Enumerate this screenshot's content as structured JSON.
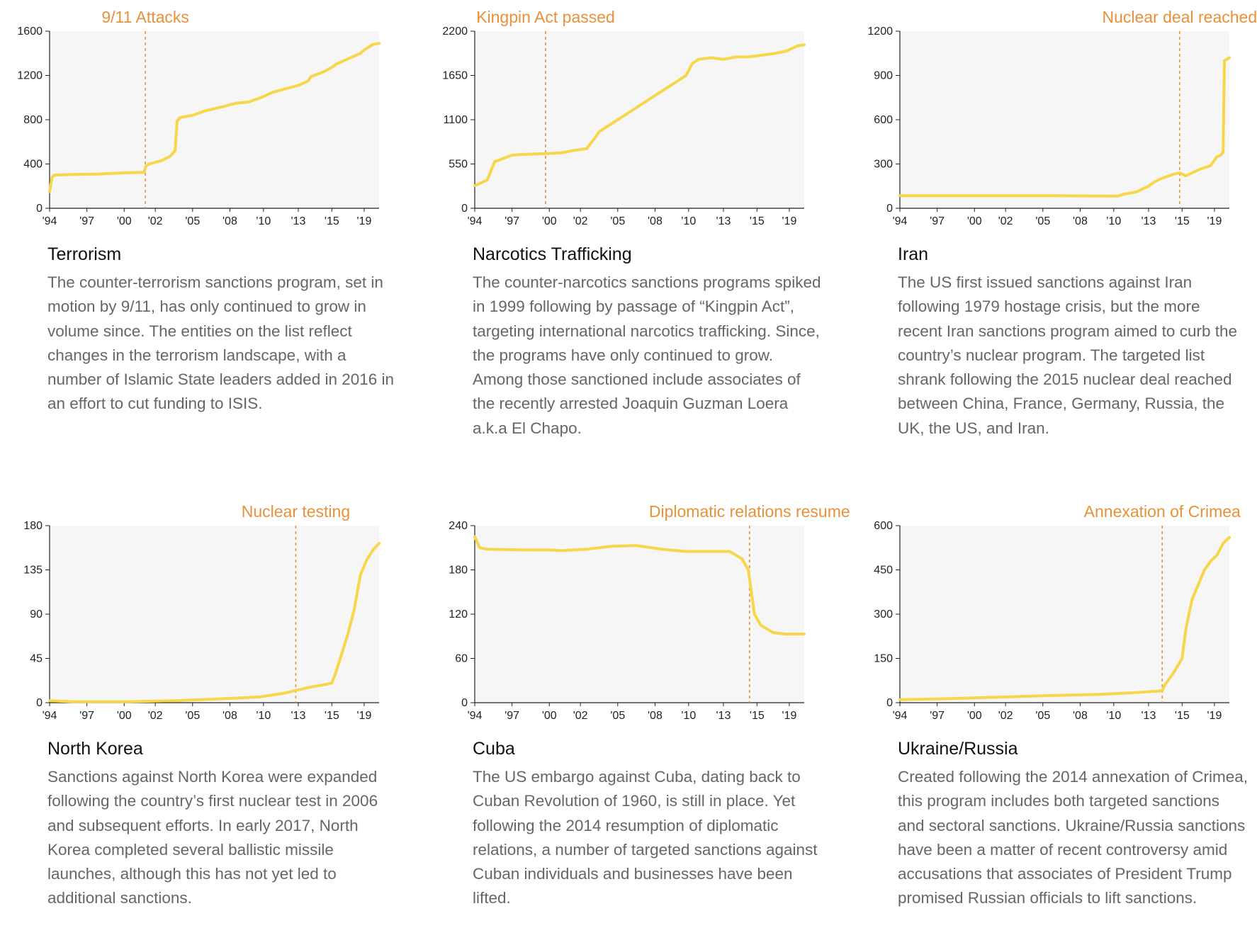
{
  "colors": {
    "line": "#f7d64a",
    "annotation": "#e8913a",
    "plot_background": "#f6f6f6",
    "axis": "#222222",
    "title": "#111111",
    "body_text": "#666666"
  },
  "chart_data": [
    {
      "type": "line",
      "title": "Terrorism",
      "annotation": {
        "label": "9/11 Attacks",
        "x": 2001.7
      },
      "xlim": [
        1994,
        2020.5
      ],
      "ylim": [
        0,
        1600
      ],
      "yticks": [
        0,
        400,
        800,
        1200,
        1600
      ],
      "xticks": [
        {
          "x": 1994,
          "label": "'94"
        },
        {
          "x": 1997,
          "label": "'97"
        },
        {
          "x": 2000,
          "label": "'00"
        },
        {
          "x": 2002.5,
          "label": "'02"
        },
        {
          "x": 2005.5,
          "label": "'05"
        },
        {
          "x": 2008.5,
          "label": "'08"
        },
        {
          "x": 2011.2,
          "label": "'10"
        },
        {
          "x": 2014,
          "label": "'13"
        },
        {
          "x": 2016.7,
          "label": "'15"
        },
        {
          "x": 2019.3,
          "label": "'19"
        }
      ],
      "x": [
        1994,
        1994.2,
        1994.4,
        1996,
        1998,
        2000,
        2001.6,
        2001.75,
        2002,
        2003,
        2003.7,
        2004.1,
        2004.25,
        2004.5,
        2005.5,
        2006.5,
        2008,
        2009,
        2010,
        2011,
        2012,
        2013,
        2014,
        2014.8,
        2015,
        2016,
        2016.8,
        2017,
        2018,
        2019,
        2019.3,
        2020,
        2020.5
      ],
      "y": [
        150,
        280,
        300,
        305,
        310,
        320,
        325,
        380,
        400,
        430,
        470,
        520,
        790,
        820,
        840,
        880,
        920,
        950,
        960,
        1000,
        1050,
        1080,
        1110,
        1150,
        1190,
        1230,
        1280,
        1300,
        1350,
        1400,
        1430,
        1480,
        1490
      ]
    },
    {
      "type": "line",
      "title": "Narcotics Trafficking",
      "annotation": {
        "label": "Kingpin Act passed",
        "x": 1999.7
      },
      "xlim": [
        1994,
        2020.5
      ],
      "ylim": [
        0,
        2200
      ],
      "yticks": [
        0,
        550,
        1100,
        1650,
        2200
      ],
      "xticks": [
        {
          "x": 1994,
          "label": "'94"
        },
        {
          "x": 1997,
          "label": "'97"
        },
        {
          "x": 2000,
          "label": "'00"
        },
        {
          "x": 2002.5,
          "label": "'02"
        },
        {
          "x": 2005.5,
          "label": "'05"
        },
        {
          "x": 2008.5,
          "label": "'08"
        },
        {
          "x": 2011.2,
          "label": "'10"
        },
        {
          "x": 2014,
          "label": "'13"
        },
        {
          "x": 2016.7,
          "label": "'15"
        },
        {
          "x": 2019.3,
          "label": "'19"
        }
      ],
      "x": [
        1994,
        1995,
        1995.6,
        1996,
        1997,
        1998,
        2000,
        2001,
        2002,
        2003,
        2003.6,
        2004,
        2005,
        2006,
        2007,
        2008,
        2009,
        2010,
        2011,
        2011.5,
        2012,
        2013,
        2014,
        2015,
        2016,
        2017,
        2018,
        2019,
        2020,
        2020.5
      ],
      "y": [
        280,
        350,
        580,
        600,
        660,
        670,
        680,
        690,
        720,
        740,
        860,
        950,
        1050,
        1150,
        1250,
        1350,
        1450,
        1550,
        1650,
        1800,
        1850,
        1870,
        1850,
        1880,
        1880,
        1900,
        1920,
        1950,
        2020,
        2030
      ]
    },
    {
      "type": "line",
      "title": "Iran",
      "annotation": {
        "label": "Nuclear deal reached",
        "x": 2016.5
      },
      "xlim": [
        1994,
        2020.5
      ],
      "ylim": [
        0,
        1200
      ],
      "yticks": [
        0,
        300,
        600,
        900,
        1200
      ],
      "xticks": [
        {
          "x": 1994,
          "label": "'94"
        },
        {
          "x": 1997,
          "label": "'97"
        },
        {
          "x": 2000,
          "label": "'00"
        },
        {
          "x": 2002.5,
          "label": "'02"
        },
        {
          "x": 2005.5,
          "label": "'05"
        },
        {
          "x": 2008.5,
          "label": "'08"
        },
        {
          "x": 2011.2,
          "label": "'10"
        },
        {
          "x": 2014,
          "label": "'13"
        },
        {
          "x": 2016.7,
          "label": "'15"
        },
        {
          "x": 2019.3,
          "label": "'19"
        }
      ],
      "x": [
        1994,
        2000,
        2006,
        2010,
        2011.5,
        2012,
        2013,
        2014,
        2014.5,
        2015,
        2016,
        2016.5,
        2017,
        2017.5,
        2018,
        2019,
        2019.5,
        2019.8,
        2020,
        2020.1,
        2020.5
      ],
      "y": [
        85,
        85,
        85,
        83,
        82,
        95,
        110,
        150,
        180,
        200,
        230,
        240,
        220,
        240,
        260,
        290,
        350,
        360,
        380,
        1000,
        1020
      ]
    },
    {
      "type": "line",
      "title": "North Korea",
      "annotation": {
        "label": "Nuclear testing",
        "x": 2013.8
      },
      "xlim": [
        1994,
        2020.5
      ],
      "ylim": [
        0,
        180
      ],
      "yticks": [
        0,
        45,
        90,
        135,
        180
      ],
      "xticks": [
        {
          "x": 1994,
          "label": "'94"
        },
        {
          "x": 1997,
          "label": "'97"
        },
        {
          "x": 2000,
          "label": "'00"
        },
        {
          "x": 2002.5,
          "label": "'02"
        },
        {
          "x": 2005.5,
          "label": "'05"
        },
        {
          "x": 2008.5,
          "label": "'08"
        },
        {
          "x": 2011.2,
          "label": "'10"
        },
        {
          "x": 2014,
          "label": "'13"
        },
        {
          "x": 2016.7,
          "label": "'15"
        },
        {
          "x": 2019.3,
          "label": "'19"
        }
      ],
      "x": [
        1994,
        1996,
        2000,
        2004,
        2008,
        2011,
        2012,
        2013,
        2014,
        2015,
        2016,
        2016.7,
        2017,
        2017.5,
        2018,
        2018.5,
        2019,
        2019.5,
        2020,
        2020.5
      ],
      "y": [
        2,
        1,
        1,
        2,
        4,
        6,
        8,
        10,
        13,
        16,
        18,
        20,
        30,
        50,
        70,
        95,
        130,
        145,
        155,
        162
      ]
    },
    {
      "type": "line",
      "title": "Cuba",
      "annotation": {
        "label": "Diplomatic relations resume",
        "x": 2016.1
      },
      "xlim": [
        1994,
        2020.5
      ],
      "ylim": [
        0,
        240
      ],
      "yticks": [
        0,
        60,
        120,
        180,
        240
      ],
      "xticks": [
        {
          "x": 1994,
          "label": "'94"
        },
        {
          "x": 1997,
          "label": "'97"
        },
        {
          "x": 2000,
          "label": "'00"
        },
        {
          "x": 2002.5,
          "label": "'02"
        },
        {
          "x": 2005.5,
          "label": "'05"
        },
        {
          "x": 2008.5,
          "label": "'08"
        },
        {
          "x": 2011.2,
          "label": "'10"
        },
        {
          "x": 2014,
          "label": "'13"
        },
        {
          "x": 2016.7,
          "label": "'15"
        },
        {
          "x": 2019.3,
          "label": "'19"
        }
      ],
      "x": [
        1994,
        1994.4,
        1995,
        1998,
        2000,
        2001,
        2003,
        2005,
        2007,
        2009,
        2011,
        2013,
        2014.5,
        2015.5,
        2016,
        2016.5,
        2017,
        2018,
        2019,
        2020.5
      ],
      "y": [
        225,
        210,
        208,
        207,
        207,
        206,
        208,
        212,
        213,
        208,
        205,
        205,
        205,
        195,
        180,
        120,
        105,
        95,
        93,
        93
      ]
    },
    {
      "type": "line",
      "title": "Ukraine/Russia",
      "annotation": {
        "label": "Annexation of Crimea",
        "x": 2015.1
      },
      "xlim": [
        1994,
        2020.5
      ],
      "ylim": [
        0,
        600
      ],
      "yticks": [
        0,
        150,
        300,
        450,
        600
      ],
      "xticks": [
        {
          "x": 1994,
          "label": "'94"
        },
        {
          "x": 1997,
          "label": "'97"
        },
        {
          "x": 2000,
          "label": "'00"
        },
        {
          "x": 2002.5,
          "label": "'02"
        },
        {
          "x": 2005.5,
          "label": "'05"
        },
        {
          "x": 2008.5,
          "label": "'08"
        },
        {
          "x": 2011.2,
          "label": "'10"
        },
        {
          "x": 2014,
          "label": "'13"
        },
        {
          "x": 2016.7,
          "label": "'15"
        },
        {
          "x": 2019.3,
          "label": "'19"
        }
      ],
      "x": [
        1994,
        1998,
        2002,
        2006,
        2010,
        2013,
        2015.1,
        2015.3,
        2016,
        2016.7,
        2017,
        2017.5,
        2018,
        2018.5,
        2019,
        2019.5,
        2020,
        2020.5
      ],
      "y": [
        10,
        14,
        19,
        24,
        28,
        34,
        40,
        60,
        100,
        150,
        250,
        350,
        400,
        450,
        480,
        500,
        540,
        560
      ]
    }
  ],
  "captions": [
    {
      "title": "Terrorism",
      "body": "The counter-terrorism sanctions program, set in motion by 9/11, has only continued to grow in volume since. The entities on the list reflect changes in the terrorism landscape, with a number of Islamic State leaders added in 2016 in an effort to cut funding to ISIS."
    },
    {
      "title": "Narcotics Trafficking",
      "body": "The counter-narcotics sanctions programs spiked in 1999 following by passage of “Kingpin Act”, targeting international narcotics trafficking. Since, the programs have only continued to grow. Among those sanctioned include associates of the recently arrested Joaquin Guzman Loera a.k.a El Chapo."
    },
    {
      "title": "Iran",
      "body": "The US first issued sanctions against Iran following 1979 hostage crisis, but the more recent Iran sanctions program aimed to curb the country’s nuclear program. The targeted list shrank following the 2015 nuclear deal reached between China, France, Germany, Russia, the UK, the US, and Iran."
    },
    {
      "title": "North Korea",
      "body": "Sanctions against North Korea were expanded following the country’s first nuclear test in 2006 and subsequent efforts. In early 2017, North Korea completed several ballistic missile launches, although this has not yet led to additional sanctions."
    },
    {
      "title": "Cuba",
      "body": "The US embargo against Cuba, dating back to Cuban Revolution of 1960, is still in place. Yet following the 2014 resumption of diplomatic relations, a number of targeted sanctions against Cuban individuals and businesses have been lifted."
    },
    {
      "title": "Ukraine/Russia",
      "body": "Created following the 2014 annexation of Crimea, this program includes both targeted sanctions and sectoral sanctions. Ukraine/Russia sanctions have been a matter of recent controversy amid accusations that associates of President Trump promised Russian officials to lift sanctions."
    }
  ]
}
